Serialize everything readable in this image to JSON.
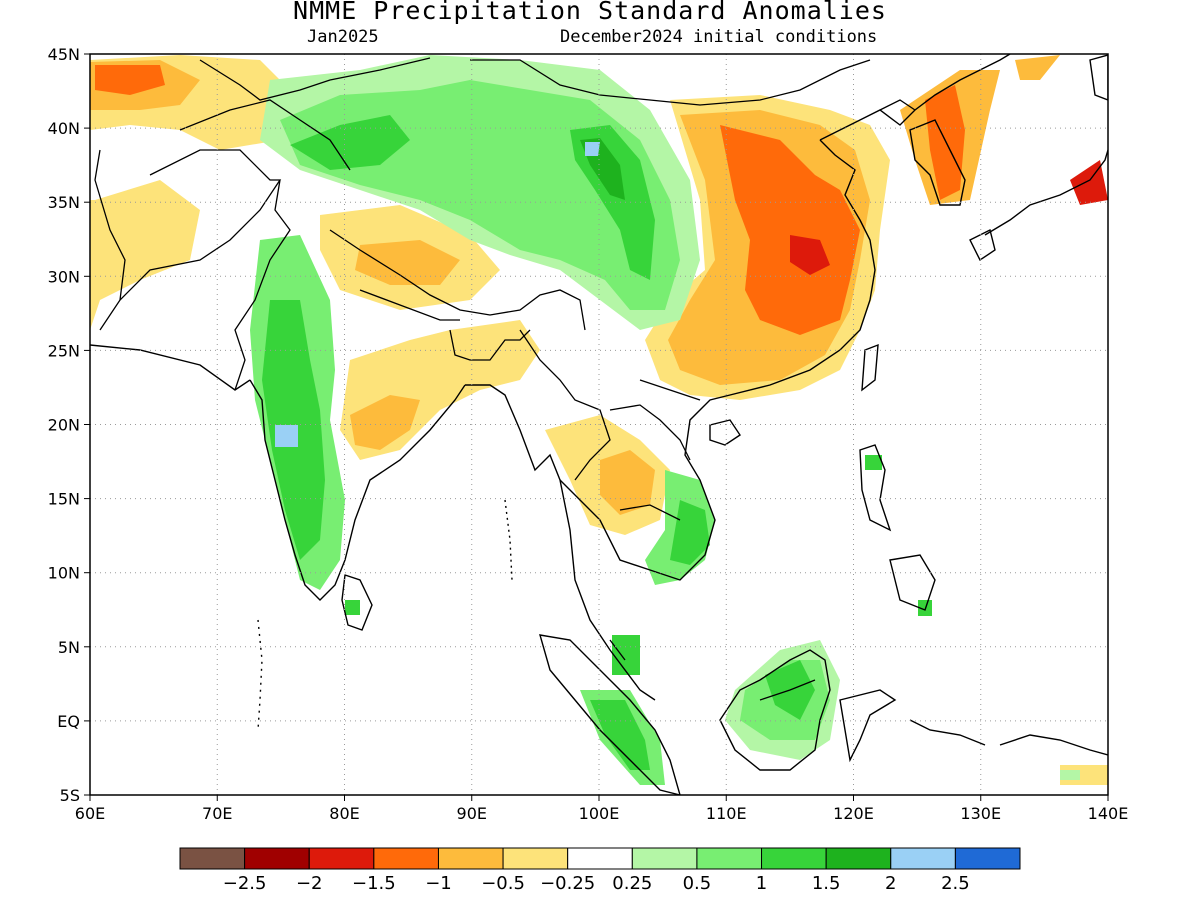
{
  "header": {
    "title": "NMME Precipitation Standard Anomalies",
    "valid_month": "Jan2025",
    "initial_conditions": "December2024 initial conditions"
  },
  "map": {
    "lat_labels": [
      "45N",
      "40N",
      "35N",
      "30N",
      "25N",
      "20N",
      "15N",
      "10N",
      "5N",
      "EQ",
      "5S"
    ],
    "lon_labels": [
      "60E",
      "70E",
      "80E",
      "90E",
      "100E",
      "110E",
      "120E",
      "130E",
      "140E"
    ],
    "lon_range": [
      60,
      140
    ],
    "lat_range": [
      -5,
      45
    ],
    "grid": "dotted"
  },
  "colorbar": {
    "colors": [
      "#7a5243",
      "#a00000",
      "#dd1a0b",
      "#ff6a0a",
      "#fdbb3c",
      "#fde37a",
      "#ffffff",
      "#b4f6a6",
      "#78ee72",
      "#37d43a",
      "#1eb21e",
      "#9ad0f5",
      "#1f6ad6"
    ],
    "labels": [
      "−2.5",
      "−2",
      "−1.5",
      "−1",
      "−0.5",
      "−0.25",
      "0.25",
      "0.5",
      "1",
      "1.5",
      "2",
      "2.5"
    ]
  },
  "palette": {
    "c_m2": "#a00000",
    "c_m15": "#dd1a0b",
    "c_m1": "#ff6a0a",
    "c_m05": "#fdbb3c",
    "c_m025": "#fde37a",
    "c_p025": "#b4f6a6",
    "c_p05": "#78ee72",
    "c_p1": "#37d43a",
    "c_p15": "#1eb21e",
    "c_p2": "#9ad0f5"
  }
}
